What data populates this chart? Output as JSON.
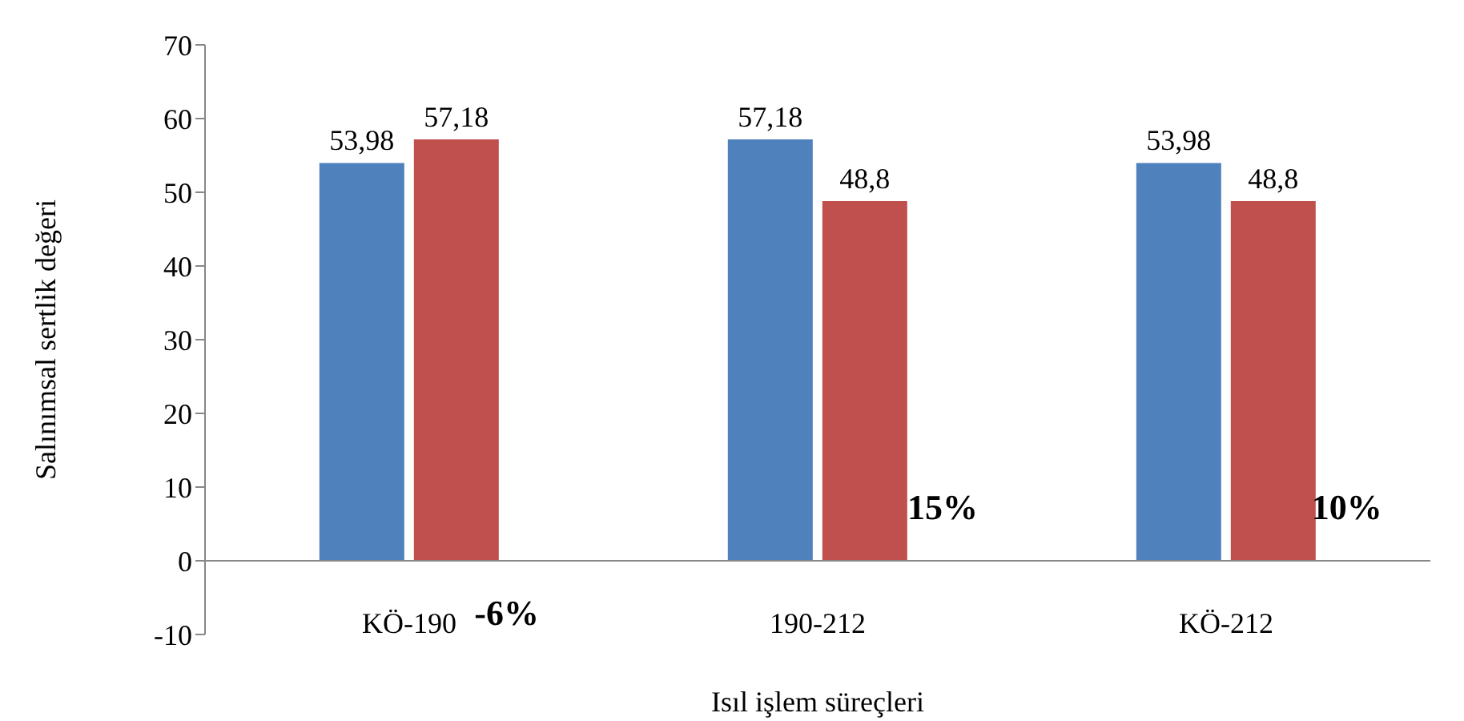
{
  "chart_data": {
    "type": "bar",
    "xlabel": "Isıl işlem süreçleri",
    "ylabel": "Salınımsal sertlik değeri",
    "categories": [
      "KÖ-190",
      "190-212",
      "KÖ-212"
    ],
    "series": [
      {
        "color": "#4f81bd",
        "values": [
          53.98,
          57.18,
          53.98
        ],
        "value_labels": [
          "53,98",
          "57,18",
          "53,98"
        ]
      },
      {
        "color": "#c0504d",
        "values": [
          57.18,
          48.8,
          48.8
        ],
        "value_labels": [
          "57,18",
          "48,8",
          "48,8"
        ]
      }
    ],
    "ylim": [
      -10,
      70
    ],
    "yticks": [
      -10,
      0,
      10,
      20,
      30,
      40,
      50,
      60,
      70
    ],
    "grid": false,
    "annotations": [
      "-6%",
      "15%",
      "10%"
    ]
  }
}
